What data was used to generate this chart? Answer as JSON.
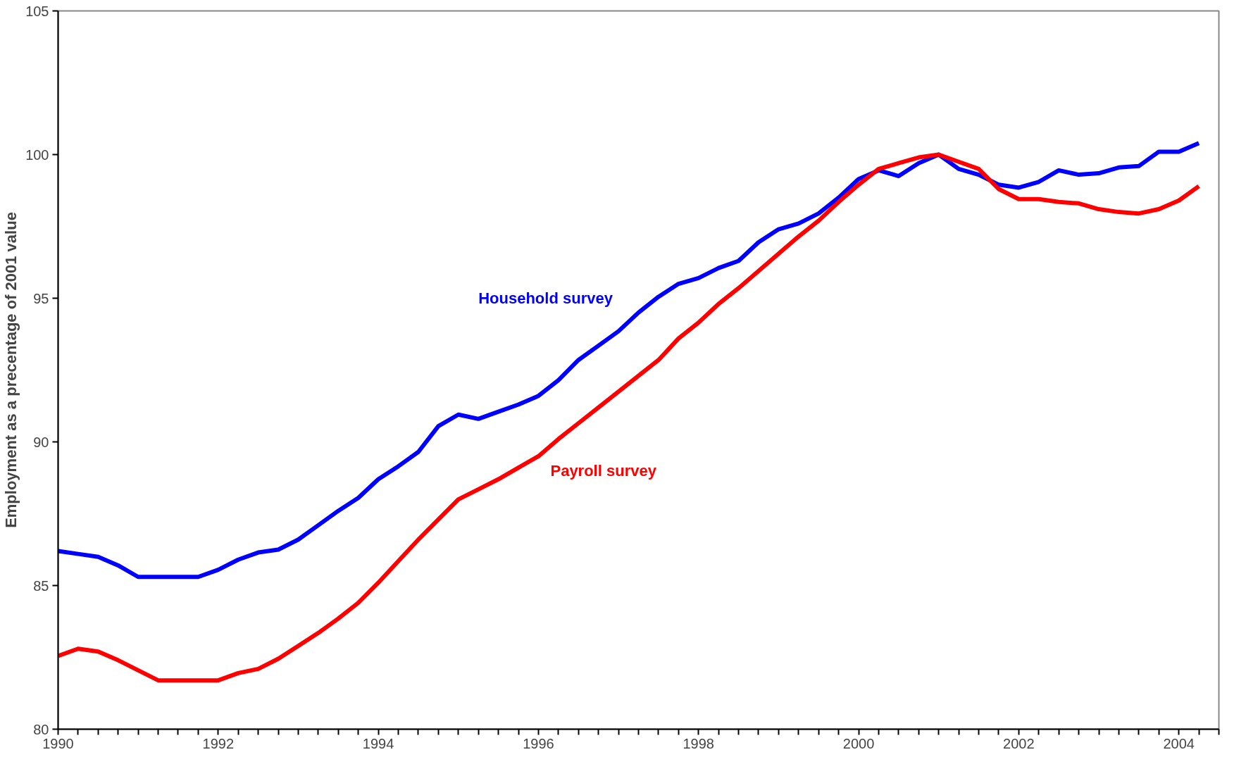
{
  "chart_data": {
    "type": "line",
    "ylabel": "Employment as a precentage of 2001 value",
    "x": [
      1990,
      1990.25,
      1990.5,
      1990.75,
      1991,
      1991.25,
      1991.5,
      1991.75,
      1992,
      1992.25,
      1992.5,
      1992.75,
      1993,
      1993.25,
      1993.5,
      1993.75,
      1994,
      1994.25,
      1994.5,
      1994.75,
      1995,
      1995.25,
      1995.5,
      1995.75,
      1996,
      1996.25,
      1996.5,
      1996.75,
      1997,
      1997.25,
      1997.5,
      1997.75,
      1998,
      1998.25,
      1998.5,
      1998.75,
      1999,
      1999.25,
      1999.5,
      1999.75,
      2000,
      2000.25,
      2000.5,
      2000.75,
      2001,
      2001.25,
      2001.5,
      2001.75,
      2002,
      2002.25,
      2002.5,
      2002.75,
      2003,
      2003.25,
      2003.5,
      2003.75,
      2004,
      2004.25
    ],
    "series": [
      {
        "name": "Household survey",
        "color": "#0000ff",
        "values": [
          86.2,
          86.1,
          86.0,
          85.7,
          85.3,
          85.3,
          85.3,
          85.3,
          85.55,
          85.9,
          86.15,
          86.25,
          86.6,
          87.1,
          87.6,
          88.05,
          88.7,
          89.15,
          89.65,
          90.55,
          90.95,
          90.8,
          91.05,
          91.3,
          91.6,
          92.15,
          92.85,
          93.35,
          93.85,
          94.5,
          95.05,
          95.5,
          95.7,
          96.05,
          96.3,
          96.95,
          97.4,
          97.6,
          97.95,
          98.5,
          99.15,
          99.45,
          99.25,
          99.7,
          100,
          99.5,
          99.3,
          98.95,
          98.85,
          99.05,
          99.45,
          99.3,
          99.35,
          99.55,
          99.6,
          100.1,
          100.1,
          100.4
        ]
      },
      {
        "name": "Payroll survey",
        "color": "#ff0000",
        "values": [
          82.55,
          82.8,
          82.7,
          82.4,
          82.05,
          81.7,
          81.7,
          81.7,
          81.7,
          81.95,
          82.1,
          82.45,
          82.9,
          83.35,
          83.85,
          84.4,
          85.1,
          85.85,
          86.6,
          87.3,
          88.0,
          88.35,
          88.7,
          89.1,
          89.5,
          90.1,
          90.65,
          91.2,
          91.75,
          92.3,
          92.85,
          93.6,
          94.15,
          94.8,
          95.35,
          95.95,
          96.55,
          97.15,
          97.7,
          98.35,
          98.95,
          99.5,
          99.7,
          99.9,
          100,
          99.75,
          99.5,
          98.8,
          98.45,
          98.45,
          98.35,
          98.3,
          98.1,
          98.0,
          97.95,
          98.1,
          98.4,
          98.9
        ]
      }
    ],
    "xlim": [
      1990,
      2004.5
    ],
    "xticks": [
      1990,
      {
        "value": 1990.25,
        "label": null
      },
      {
        "value": 1990.5,
        "label": null
      },
      {
        "value": 1990.75,
        "label": null
      },
      {
        "value": 1991,
        "label": null
      },
      {
        "value": 1991.25,
        "label": null
      },
      {
        "value": 1991.5,
        "label": null
      },
      {
        "value": 1991.75,
        "label": null
      },
      1992,
      {
        "value": 1992.25,
        "label": null
      },
      {
        "value": 1992.5,
        "label": null
      },
      {
        "value": 1992.75,
        "label": null
      },
      {
        "value": 1993,
        "label": null
      },
      {
        "value": 1993.25,
        "label": null
      },
      {
        "value": 1993.5,
        "label": null
      },
      {
        "value": 1993.75,
        "label": null
      },
      1994,
      {
        "value": 1994.25,
        "label": null
      },
      {
        "value": 1994.5,
        "label": null
      },
      {
        "value": 1994.75,
        "label": null
      },
      {
        "value": 1995,
        "label": null
      },
      {
        "value": 1995.25,
        "label": null
      },
      {
        "value": 1995.5,
        "label": null
      },
      {
        "value": 1995.75,
        "label": null
      },
      1996,
      {
        "value": 1996.25,
        "label": null
      },
      {
        "value": 1996.5,
        "label": null
      },
      {
        "value": 1996.75,
        "label": null
      },
      {
        "value": 1997,
        "label": null
      },
      {
        "value": 1997.25,
        "label": null
      },
      {
        "value": 1997.5,
        "label": null
      },
      {
        "value": 1997.75,
        "label": null
      },
      1998,
      {
        "value": 1998.25,
        "label": null
      },
      {
        "value": 1998.5,
        "label": null
      },
      {
        "value": 1998.75,
        "label": null
      },
      {
        "value": 1999,
        "label": null
      },
      {
        "value": 1999.25,
        "label": null
      },
      {
        "value": 1999.5,
        "label": null
      },
      {
        "value": 1999.75,
        "label": null
      },
      2000,
      {
        "value": 2000.25,
        "label": null
      },
      {
        "value": 2000.5,
        "label": null
      },
      {
        "value": 2000.75,
        "label": null
      },
      {
        "value": 2001,
        "label": null
      },
      {
        "value": 2001.25,
        "label": null
      },
      {
        "value": 2001.5,
        "label": null
      },
      {
        "value": 2001.75,
        "label": null
      },
      2002,
      {
        "value": 2002.25,
        "label": null
      },
      {
        "value": 2002.5,
        "label": null
      },
      {
        "value": 2002.75,
        "label": null
      },
      {
        "value": 2003,
        "label": null
      },
      {
        "value": 2003.25,
        "label": null
      },
      {
        "value": 2003.5,
        "label": null
      },
      {
        "value": 2003.75,
        "label": null
      },
      2004,
      {
        "value": 2004.25,
        "label": null
      },
      {
        "value": 2004.5,
        "label": null
      }
    ],
    "ylim": [
      80,
      105
    ],
    "yticks": [
      80,
      85,
      90,
      95,
      100,
      105
    ],
    "grid": false,
    "legend": false,
    "marker": "none",
    "line_style": "solid"
  }
}
